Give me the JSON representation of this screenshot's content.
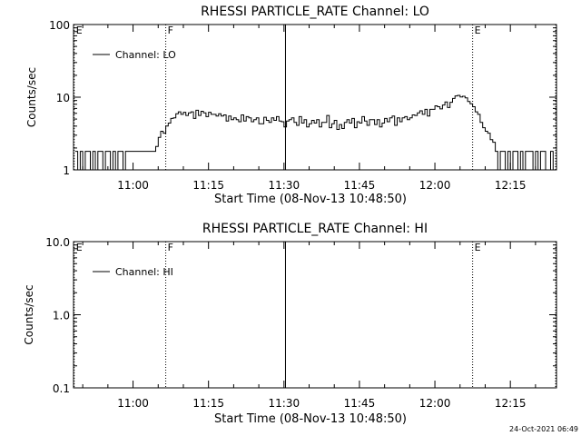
{
  "timestamp": "24-Oct-2021 06:49",
  "chart_data": [
    {
      "type": "line",
      "title": "RHESSI PARTICLE_RATE Channel: LO",
      "xlabel": "Start Time (08-Nov-13 10:48:50)",
      "ylabel": "Counts/sec",
      "ylog": true,
      "ylim": [
        1,
        100
      ],
      "xlim_minutes": [
        -11.83,
        84.17
      ],
      "x_ticks": [
        {
          "label": "11:00",
          "minutes": 0
        },
        {
          "label": "11:15",
          "minutes": 15
        },
        {
          "label": "11:30",
          "minutes": 30
        },
        {
          "label": "11:45",
          "minutes": 45
        },
        {
          "label": "12:00",
          "minutes": 60
        },
        {
          "label": "12:15",
          "minutes": 75
        }
      ],
      "y_ticks": [
        {
          "label": "100",
          "value": 100
        },
        {
          "label": "10",
          "value": 10
        },
        {
          "label": "1",
          "value": 1
        }
      ],
      "legend": {
        "label": "Channel: LO",
        "placement": "top-left"
      },
      "markers": [
        {
          "label": "E",
          "minutes": -11.7,
          "style": "dotted"
        },
        {
          "label": "F",
          "minutes": 6.5,
          "style": "dotted"
        },
        {
          "label": "",
          "minutes": 30.3,
          "style": "solid"
        },
        {
          "label": "E",
          "minutes": 67.5,
          "style": "dotted"
        },
        {
          "label": "",
          "minutes": 84.0,
          "style": "dotted"
        }
      ],
      "series": [
        {
          "x": [
            -11.5,
            -11.0,
            -10.5,
            -10.0,
            -9.5,
            -9.0,
            -8.5,
            -8.0,
            -7.5,
            -7.0,
            -6.5,
            -6.0,
            -5.5,
            -5.0,
            -4.5,
            -4.0,
            -3.5,
            -3.0,
            -2.5,
            -2.0,
            -1.5,
            -1.0,
            -0.5,
            0.0,
            0.5,
            1.0,
            1.5,
            2.0,
            2.5,
            3.0,
            3.5,
            4.0,
            4.5,
            5.0,
            5.5,
            6.0,
            6.5,
            7.0,
            7.5,
            8.0,
            8.5,
            9.0,
            9.5,
            10.0,
            10.5,
            11.0,
            11.5,
            12.0,
            12.5,
            13.0,
            13.5,
            14.0,
            14.5,
            15.0,
            15.5,
            16.0,
            16.5,
            17.0,
            17.5,
            18.0,
            18.5,
            19.0,
            19.5,
            20.0,
            20.5,
            21.0,
            21.5,
            22.0,
            22.5,
            23.0,
            23.5,
            24.0,
            24.5,
            25.0,
            25.5,
            26.0,
            26.5,
            27.0,
            27.5,
            28.0,
            28.5,
            29.0,
            29.5,
            30.0,
            30.5,
            31.0,
            31.5,
            32.0,
            32.5,
            33.0,
            33.5,
            34.0,
            34.5,
            35.0,
            35.5,
            36.0,
            36.5,
            37.0,
            37.5,
            38.0,
            38.5,
            39.0,
            39.5,
            40.0,
            40.5,
            41.0,
            41.5,
            42.0,
            42.5,
            43.0,
            43.5,
            44.0,
            44.5,
            45.0,
            45.5,
            46.0,
            46.5,
            47.0,
            47.5,
            48.0,
            48.5,
            49.0,
            49.5,
            50.0,
            50.5,
            51.0,
            51.5,
            52.0,
            52.5,
            53.0,
            53.5,
            54.0,
            54.5,
            55.0,
            55.5,
            56.0,
            56.5,
            57.0,
            57.5,
            58.0,
            58.5,
            59.0,
            59.5,
            60.0,
            60.5,
            61.0,
            61.5,
            62.0,
            62.5,
            63.0,
            63.5,
            64.0,
            64.5,
            65.0,
            65.5,
            66.0,
            66.5,
            67.0,
            67.5,
            68.0,
            68.5,
            69.0,
            69.5,
            70.0,
            70.5,
            71.0,
            71.5,
            72.0,
            72.5,
            73.0,
            73.5,
            74.0,
            74.5,
            75.0,
            75.5,
            76.0,
            76.5,
            77.0,
            77.5,
            78.0,
            78.5,
            79.0,
            79.5,
            80.0,
            80.5,
            81.0,
            81.5,
            82.0,
            82.5,
            83.0,
            83.5
          ],
          "values": [
            1.8,
            1,
            1.8,
            1,
            1.8,
            1.8,
            1,
            1.8,
            1,
            1.8,
            1.8,
            1,
            1.8,
            1.8,
            1,
            1.8,
            1,
            1.8,
            1.8,
            1,
            1.8,
            1.8,
            1.8,
            1.8,
            1.8,
            1.8,
            1.8,
            1.8,
            1.8,
            1.8,
            1.8,
            1.8,
            2.1,
            2.8,
            3.4,
            3.2,
            4,
            4.4,
            5.1,
            5.2,
            5.9,
            6.3,
            5.8,
            6.2,
            5.6,
            6.1,
            6.3,
            5.1,
            6.6,
            5.6,
            6.4,
            6.1,
            5.4,
            6.2,
            5.8,
            5.8,
            5.5,
            5.9,
            5.5,
            5.7,
            4.7,
            5.5,
            4.9,
            5.2,
            4.9,
            4.6,
            5.7,
            4.7,
            5.4,
            5.2,
            4.6,
            4.9,
            5.2,
            4.3,
            4.3,
            5.3,
            4.8,
            4.5,
            5.2,
            4.8,
            5.4,
            4.7,
            4.6,
            3.9,
            4.7,
            4.9,
            5.2,
            4.5,
            4.1,
            5.4,
            4.4,
            4.9,
            3.9,
            4.3,
            4.8,
            4.4,
            4.9,
            3.9,
            4.5,
            4.5,
            5.6,
            3.8,
            4.3,
            4.8,
            3.6,
            4.2,
            3.7,
            4.5,
            4.9,
            4.4,
            5.1,
            3.8,
            4.6,
            4.4,
            5.4,
            4.7,
            4.1,
            4.9,
            4.9,
            4.2,
            4.9,
            3.9,
            4.4,
            5.1,
            4.6,
            5.2,
            5.5,
            4.1,
            5.2,
            4.6,
            5.2,
            5.4,
            4.9,
            5.2,
            5.7,
            5.6,
            6.1,
            6.5,
            5.8,
            6.8,
            5.5,
            6.8,
            6.8,
            7.6,
            7.4,
            6.9,
            7.8,
            8.6,
            7.2,
            8.5,
            9.6,
            10.4,
            10.6,
            10.1,
            10.3,
            9.8,
            8.7,
            8.1,
            7.4,
            6.3,
            5.8,
            4.5,
            3.8,
            3.4,
            3.2,
            2.6,
            2.4,
            1.8,
            1,
            1.8,
            1.8,
            1,
            1.8,
            1,
            1.8,
            1.8,
            1,
            1.8,
            1,
            1.8,
            1.8,
            1.8,
            1,
            1.8,
            1,
            1.8,
            1.8,
            1,
            1,
            1.8,
            1
          ]
        }
      ]
    },
    {
      "type": "line",
      "title": "RHESSI PARTICLE_RATE Channel: HI",
      "xlabel": "Start Time (08-Nov-13 10:48:50)",
      "ylabel": "Counts/sec",
      "ylog": true,
      "ylim": [
        0.1,
        10
      ],
      "xlim_minutes": [
        -11.83,
        84.17
      ],
      "x_ticks": [
        {
          "label": "11:00",
          "minutes": 0
        },
        {
          "label": "11:15",
          "minutes": 15
        },
        {
          "label": "11:30",
          "minutes": 30
        },
        {
          "label": "11:45",
          "minutes": 45
        },
        {
          "label": "12:00",
          "minutes": 60
        },
        {
          "label": "12:15",
          "minutes": 75
        }
      ],
      "y_ticks": [
        {
          "label": "10.0",
          "value": 10
        },
        {
          "label": "1.0",
          "value": 1
        },
        {
          "label": "0.1",
          "value": 0.1
        }
      ],
      "legend": {
        "label": "Channel: HI",
        "placement": "top-left"
      },
      "markers": [
        {
          "label": "E",
          "minutes": -11.7,
          "style": "dotted"
        },
        {
          "label": "F",
          "minutes": 6.5,
          "style": "dotted"
        },
        {
          "label": "",
          "minutes": 30.3,
          "style": "solid"
        },
        {
          "label": "E",
          "minutes": 67.5,
          "style": "dotted"
        },
        {
          "label": "",
          "minutes": 84.0,
          "style": "dotted"
        }
      ],
      "series": []
    }
  ]
}
